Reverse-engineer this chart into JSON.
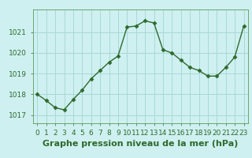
{
  "x": [
    0,
    1,
    2,
    3,
    4,
    5,
    6,
    7,
    8,
    9,
    10,
    11,
    12,
    13,
    14,
    15,
    16,
    17,
    18,
    19,
    20,
    21,
    22,
    23
  ],
  "y": [
    1018.0,
    1017.7,
    1017.35,
    1017.25,
    1017.75,
    1018.2,
    1018.75,
    1019.15,
    1019.55,
    1019.85,
    1021.25,
    1021.3,
    1021.55,
    1021.45,
    1020.15,
    1020.0,
    1019.65,
    1019.3,
    1019.15,
    1018.88,
    1018.88,
    1019.3,
    1019.8,
    1021.3
  ],
  "line_color": "#2d6a2d",
  "marker": "D",
  "marker_size": 2.5,
  "bg_color": "#cff0f0",
  "grid_color": "#a8d8d8",
  "xlabel": "Graphe pression niveau de la mer (hPa)",
  "xlabel_fontsize": 8,
  "xlabel_color": "#2d6a2d",
  "xlabel_bold": true,
  "ylim": [
    1016.6,
    1022.1
  ],
  "xlim": [
    -0.5,
    23.5
  ],
  "yticks": [
    1017,
    1018,
    1019,
    1020,
    1021
  ],
  "xticks": [
    0,
    1,
    2,
    3,
    4,
    5,
    6,
    7,
    8,
    9,
    10,
    11,
    12,
    13,
    14,
    15,
    16,
    17,
    18,
    19,
    20,
    21,
    22,
    23
  ],
  "tick_fontsize": 6.5,
  "tick_color": "#2d6a2d",
  "spine_color": "#5a9a5a",
  "linewidth": 1.0
}
